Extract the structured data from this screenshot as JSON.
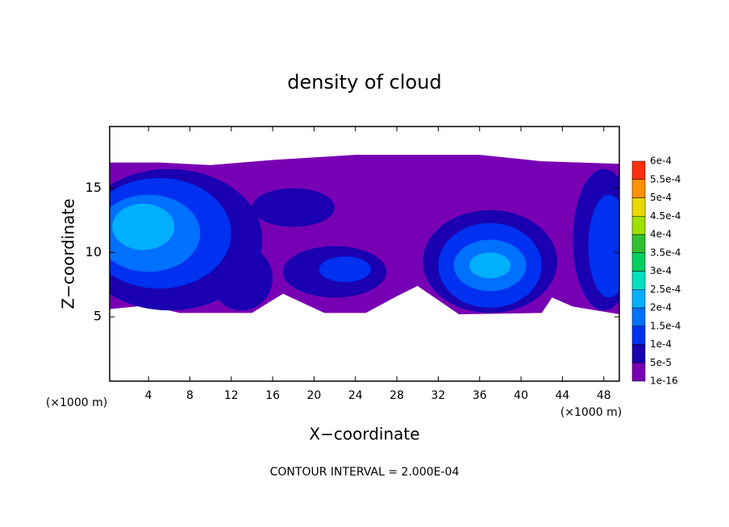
{
  "chart_data": {
    "type": "contour",
    "title": "density of cloud",
    "x_label": "X−coordinate",
    "y_label": "Z−coordinate",
    "y_unit_label": "(×1000 m)",
    "x_unit_label": "(×1000 m)",
    "footer": "CONTOUR INTERVAL = 2.000E-04",
    "xlim": [
      0.25,
      49.5
    ],
    "ylim": [
      0,
      19.8
    ],
    "xticks": [
      4,
      8,
      12,
      16,
      20,
      24,
      28,
      32,
      36,
      40,
      44,
      48
    ],
    "yticks": [
      5,
      10,
      15
    ],
    "colorbar": {
      "levels": [
        {
          "value": 1e-16,
          "label": "1e-16"
        },
        {
          "value": 5e-05,
          "label": "5e-5"
        },
        {
          "value": 0.0001,
          "label": "1e-4"
        },
        {
          "value": 0.00015,
          "label": "1.5e-4"
        },
        {
          "value": 0.0002,
          "label": "2e-4"
        },
        {
          "value": 0.00025,
          "label": "2.5e-4"
        },
        {
          "value": 0.0003,
          "label": "3e-4"
        },
        {
          "value": 0.00035,
          "label": "3.5e-4"
        },
        {
          "value": 0.0004,
          "label": "4e-4"
        },
        {
          "value": 0.00045,
          "label": "4.5e-4"
        },
        {
          "value": 0.0005,
          "label": "5e-4"
        },
        {
          "value": 0.00055,
          "label": "5.5e-4"
        },
        {
          "value": 0.0006,
          "label": "6e-4"
        }
      ],
      "colors": [
        "#7800b4",
        "#1a00b0",
        "#0030f0",
        "#0070ff",
        "#00b0ff",
        "#00e0c0",
        "#00d060",
        "#30c030",
        "#a0e000",
        "#e8d800",
        "#ff9000",
        "#ff3010",
        "#f08080"
      ]
    },
    "envelope": {
      "level": 0,
      "points": [
        [
          0.25,
          17
        ],
        [
          5,
          17
        ],
        [
          10,
          16.8
        ],
        [
          16,
          17.2
        ],
        [
          24,
          17.6
        ],
        [
          36,
          17.6
        ],
        [
          42,
          17.1
        ],
        [
          49.5,
          16.9
        ],
        [
          49.5,
          5.2
        ],
        [
          45,
          5.8
        ],
        [
          43,
          6.5
        ],
        [
          42,
          5.3
        ],
        [
          34,
          5.2
        ],
        [
          30,
          7.4
        ],
        [
          28,
          6.6
        ],
        [
          25,
          5.3
        ],
        [
          21,
          5.3
        ],
        [
          17,
          6.8
        ],
        [
          14,
          5.3
        ],
        [
          7,
          5.3
        ],
        [
          4,
          5.9
        ],
        [
          0.25,
          5.6
        ]
      ]
    },
    "blobs": [
      {
        "level": 1,
        "x": 6,
        "z": 11,
        "rx": 9,
        "rz": 5.5
      },
      {
        "level": 1,
        "x": 37,
        "z": 9.3,
        "rx": 6.5,
        "rz": 4
      },
      {
        "level": 1,
        "x": 48,
        "z": 11,
        "rx": 3,
        "rz": 5.5
      },
      {
        "level": 1,
        "x": 22,
        "z": 8.5,
        "rx": 5,
        "rz": 2
      },
      {
        "level": 1,
        "x": 13,
        "z": 8,
        "rx": 3,
        "rz": 2.5
      },
      {
        "level": 1,
        "x": 18,
        "z": 13.5,
        "rx": 4,
        "rz": 1.5
      },
      {
        "level": 2,
        "x": 5,
        "z": 11.5,
        "rx": 7,
        "rz": 4.3
      },
      {
        "level": 2,
        "x": 37,
        "z": 9,
        "rx": 5,
        "rz": 3.3
      },
      {
        "level": 2,
        "x": 48.5,
        "z": 10.5,
        "rx": 2,
        "rz": 4
      },
      {
        "level": 2,
        "x": 23,
        "z": 8.7,
        "rx": 2.5,
        "rz": 1
      },
      {
        "level": 3,
        "x": 4,
        "z": 11.5,
        "rx": 5,
        "rz": 3
      },
      {
        "level": 3,
        "x": 37,
        "z": 9,
        "rx": 3.5,
        "rz": 2
      },
      {
        "level": 4,
        "x": 3.5,
        "z": 12,
        "rx": 3,
        "rz": 1.8
      },
      {
        "level": 4,
        "x": 37,
        "z": 9,
        "rx": 2,
        "rz": 1
      }
    ]
  }
}
